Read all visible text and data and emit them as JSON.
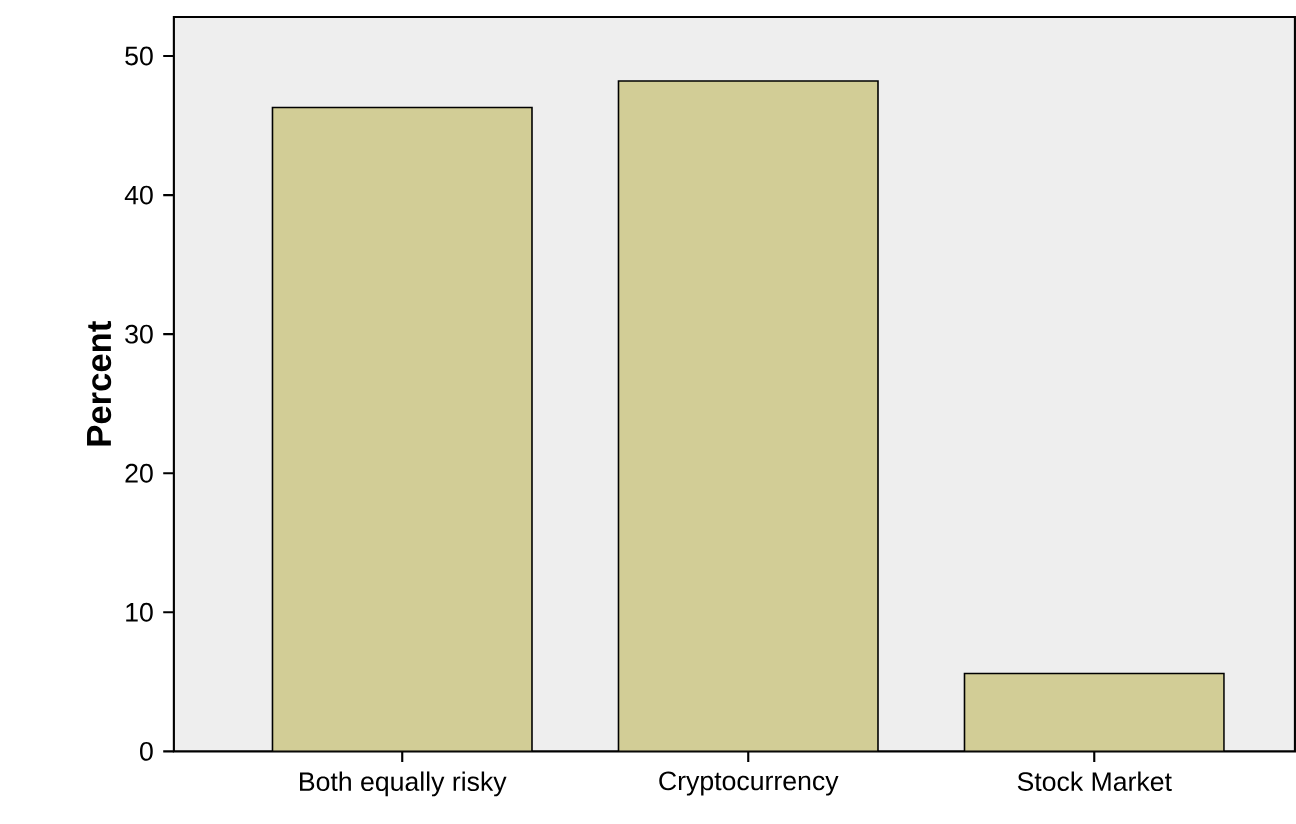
{
  "chart_data": {
    "type": "bar",
    "ylabel": "Percent",
    "categories": [
      "Both equally risky",
      "Cryptocurrency",
      "Stock Market"
    ],
    "values": [
      46.3,
      48.2,
      5.6
    ],
    "color": "#d2cd96",
    "ylim": [
      0,
      52.8
    ],
    "yticks": [
      0,
      10,
      20,
      30,
      40,
      50
    ]
  }
}
